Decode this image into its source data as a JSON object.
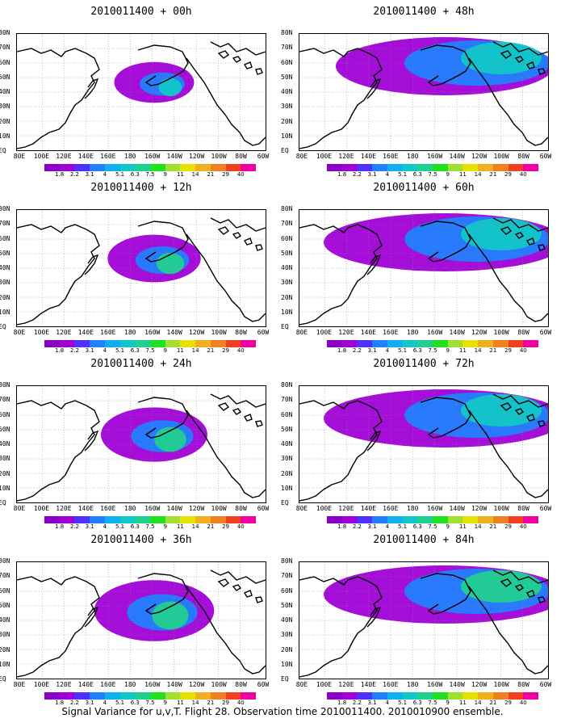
{
  "caption": "Signal Variance for u,v,T. Flight 28. Observation time 2010011400. 2010010900 ensemble.",
  "lat_labels": [
    "80N",
    "70N",
    "60N",
    "50N",
    "40N",
    "30N",
    "20N",
    "10N",
    "EQ"
  ],
  "lon_labels": [
    "80E",
    "100E",
    "120E",
    "140E",
    "160E",
    "180",
    "160W",
    "140W",
    "120W",
    "100W",
    "80W",
    "60W"
  ],
  "colorbar": {
    "labels": [
      "1.8",
      "2.2",
      "3.1",
      "4",
      "5.1",
      "6.3",
      "7.5",
      "9",
      "11",
      "14",
      "21",
      "29",
      "40"
    ],
    "colors": [
      "#8a00c4",
      "#a000d6",
      "#5030ff",
      "#2080ff",
      "#10b0f0",
      "#10c8c8",
      "#20d090",
      "#20e020",
      "#a0e030",
      "#e8e000",
      "#f0b020",
      "#f08020",
      "#f04020",
      "#f000a0"
    ]
  },
  "panels": [
    {
      "id": "p00",
      "title": "2010011400 + 00h",
      "intensity": 0.25,
      "spread": 0.3
    },
    {
      "id": "p48",
      "title": "2010011400 + 48h",
      "intensity": 0.45,
      "spread": 0.9
    },
    {
      "id": "p12",
      "title": "2010011400 + 12h",
      "intensity": 0.55,
      "spread": 0.45
    },
    {
      "id": "p60",
      "title": "2010011400 + 60h",
      "intensity": 0.5,
      "spread": 1.0
    },
    {
      "id": "p24",
      "title": "2010011400 + 24h",
      "intensity": 0.6,
      "spread": 0.6
    },
    {
      "id": "p72",
      "title": "2010011400 + 72h",
      "intensity": 0.55,
      "spread": 1.0
    },
    {
      "id": "p36",
      "title": "2010011400 + 36h",
      "intensity": 0.6,
      "spread": 0.75
    },
    {
      "id": "p84",
      "title": "2010011400 + 84h",
      "intensity": 0.65,
      "spread": 1.0
    }
  ]
}
